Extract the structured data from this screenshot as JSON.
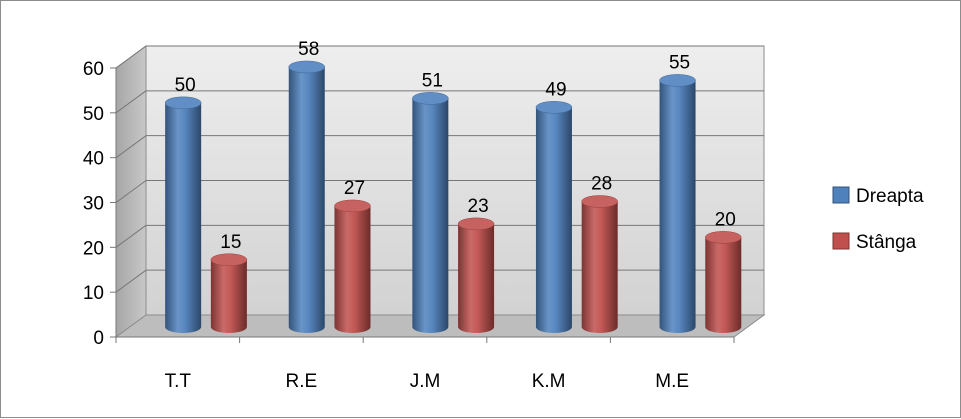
{
  "chart_data": {
    "type": "bar",
    "title": "",
    "xlabel": "",
    "ylabel": "",
    "categories": [
      "T.T",
      "R.E",
      "J.M",
      "K.M",
      "M.E"
    ],
    "series": [
      {
        "name": "Dreapta",
        "values": [
          50,
          58,
          51,
          49,
          55
        ],
        "color": "#4f81bd"
      },
      {
        "name": "Stânga",
        "values": [
          15,
          27,
          23,
          28,
          20
        ],
        "color": "#c0504d"
      }
    ],
    "ylim": [
      0,
      60
    ],
    "yticks": [
      0,
      10,
      20,
      30,
      40,
      50,
      60
    ],
    "grid": true,
    "legend_position": "right",
    "style": "3d-cylinder"
  }
}
